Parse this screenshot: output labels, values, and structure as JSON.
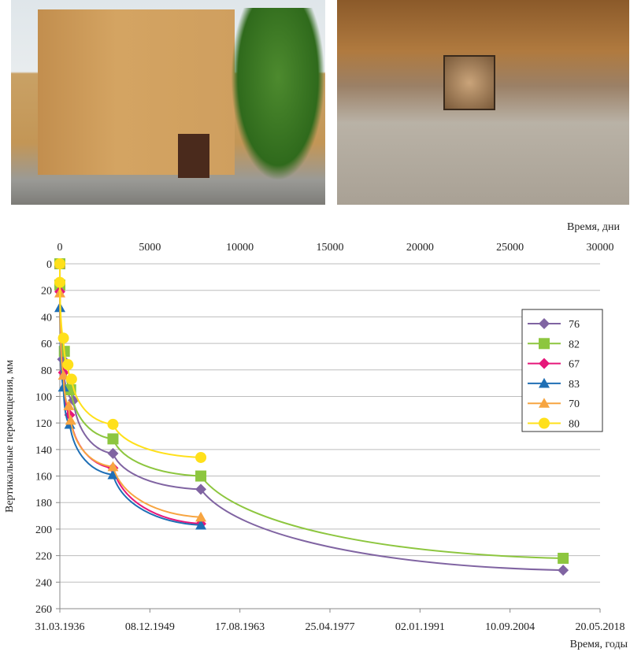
{
  "images": {
    "left": "building-photo",
    "right": "survey-mark-photo"
  },
  "chart_data": {
    "type": "line",
    "xlabel_top": "Время, дни",
    "xlabel_bottom": "Время, годы",
    "ylabel": "Вертикальные перемещения, мм",
    "xlim": [
      0,
      30000
    ],
    "ylim": [
      0,
      260
    ],
    "y_inverted": true,
    "x_ticks_top": [
      "0",
      "5000",
      "10000",
      "15000",
      "20000",
      "25000",
      "30000"
    ],
    "x_ticks_bottom": [
      "31.03.1936",
      "08.12.1949",
      "17.08.1963",
      "25.04.1977",
      "02.01.1991",
      "10.09.2004",
      "20.05.2018"
    ],
    "y_ticks": [
      "0",
      "20",
      "40",
      "60",
      "80",
      "100",
      "120",
      "140",
      "160",
      "180",
      "200",
      "220",
      "240",
      "260"
    ],
    "grid": true,
    "legend": "right",
    "series": [
      {
        "name": "76",
        "color": "#8064a2",
        "marker": "diamond",
        "x": [
          0,
          150,
          750,
          2950,
          7830,
          27950
        ],
        "y": [
          0,
          72,
          103,
          143,
          170,
          231
        ]
      },
      {
        "name": "82",
        "color": "#8dc63f",
        "marker": "square",
        "x": [
          0,
          0,
          250,
          600,
          2950,
          7830,
          27950
        ],
        "y": [
          0,
          16,
          66,
          95,
          132,
          160,
          222
        ]
      },
      {
        "name": "67",
        "color": "#e6177a",
        "marker": "diamond",
        "x": [
          0,
          0,
          200,
          550,
          2950,
          7830
        ],
        "y": [
          0,
          21,
          82,
          114,
          154,
          196
        ]
      },
      {
        "name": "83",
        "color": "#1f6fb5",
        "marker": "triangle",
        "x": [
          0,
          0,
          200,
          550,
          2950,
          7830
        ],
        "y": [
          0,
          33,
          93,
          121,
          159,
          197
        ]
      },
      {
        "name": "70",
        "color": "#f7a541",
        "marker": "triangle",
        "x": [
          0,
          0,
          200,
          500,
          600,
          2950,
          7830
        ],
        "y": [
          0,
          22,
          84,
          107,
          118,
          153,
          191
        ]
      },
      {
        "name": "80",
        "color": "#ffe01a",
        "marker": "circle",
        "x": [
          0,
          0,
          200,
          450,
          650,
          2950,
          7830
        ],
        "y": [
          0,
          14,
          56,
          76,
          87,
          121,
          146
        ]
      }
    ]
  }
}
